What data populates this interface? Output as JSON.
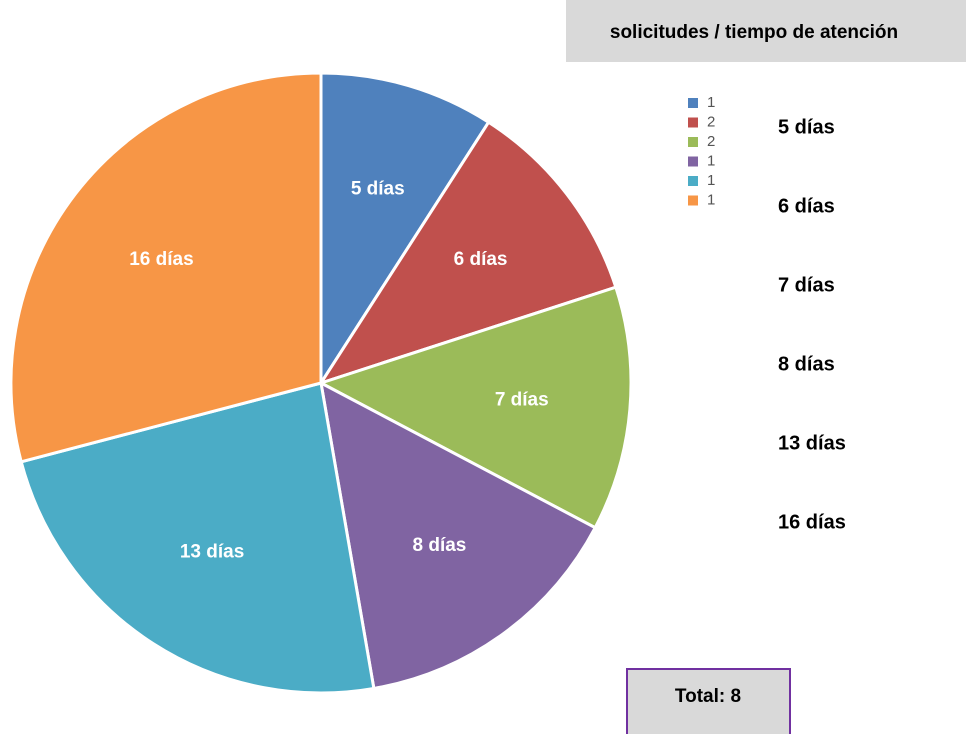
{
  "chart_data": {
    "type": "pie",
    "title": "solicitudes / tiempo de atención",
    "categories": [
      "1",
      "2",
      "2",
      "1",
      "1",
      "1"
    ],
    "values": [
      5,
      6,
      7,
      8,
      13,
      16
    ],
    "value_labels": [
      "5 días",
      "6 días",
      "7 días",
      "8 días",
      "13 días",
      "16 días"
    ],
    "colors": [
      "#4f81bd",
      "#c0504d",
      "#9bbb59",
      "#8064a2",
      "#4bacc6",
      "#f79646"
    ],
    "total_label": "Total: 8"
  }
}
